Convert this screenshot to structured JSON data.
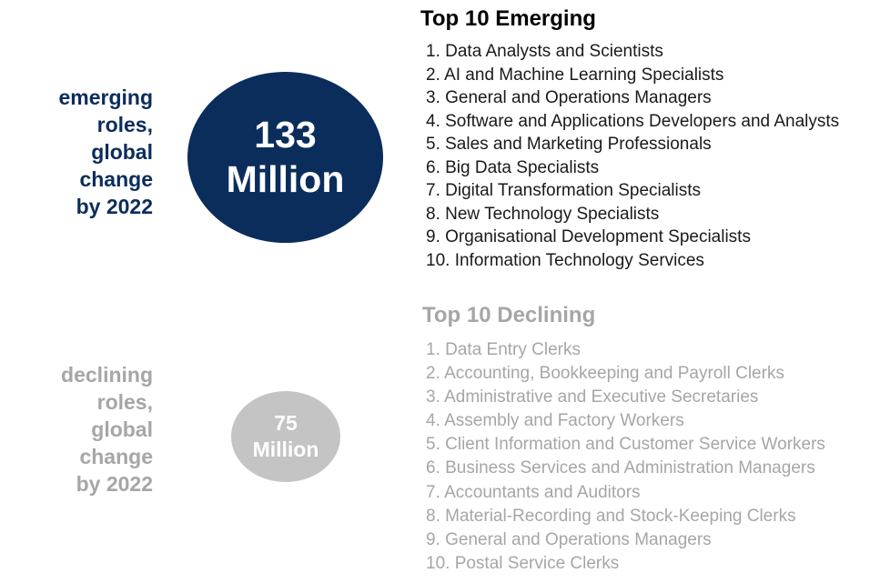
{
  "emerging": {
    "side_label": [
      "emerging",
      "roles,",
      "global",
      "change",
      "by 2022"
    ],
    "circle": [
      "133",
      "Million"
    ],
    "title": "Top 10 Emerging",
    "items": [
      "1.  Data Analysts and Scientists",
      "2.  AI and Machine Learning Specialists",
      "3.  General and Operations Managers",
      "4.  Software and Applications Developers and Analysts",
      "5.  Sales and Marketing Professionals",
      "6.  Big Data Specialists",
      "7.  Digital Transformation Specialists",
      "8.  New Technology Specialists",
      "9.  Organisational Development Specialists",
      "10. Information Technology Services"
    ],
    "color": "#0b2d5b"
  },
  "declining": {
    "side_label": [
      "declining",
      "roles,",
      "global",
      "change",
      "by 2022"
    ],
    "circle": [
      "75",
      "Million"
    ],
    "title": "Top 10 Declining",
    "items": [
      "1.   Data Entry Clerks",
      "2.   Accounting,  Bookkeeping and Payroll Clerks",
      "3.   Administrative and Executive Secretaries",
      "4.   Assembly and Factory Workers",
      "5.   Client Information and Customer Service Workers",
      "6.   Business Services and Administration Managers",
      "7.   Accountants and Auditors",
      "8.   Material-Recording and Stock-Keeping Clerks",
      "9.   General and Operations Managers",
      "10. Postal Service Clerks"
    ],
    "color": "#a6a6a6"
  }
}
